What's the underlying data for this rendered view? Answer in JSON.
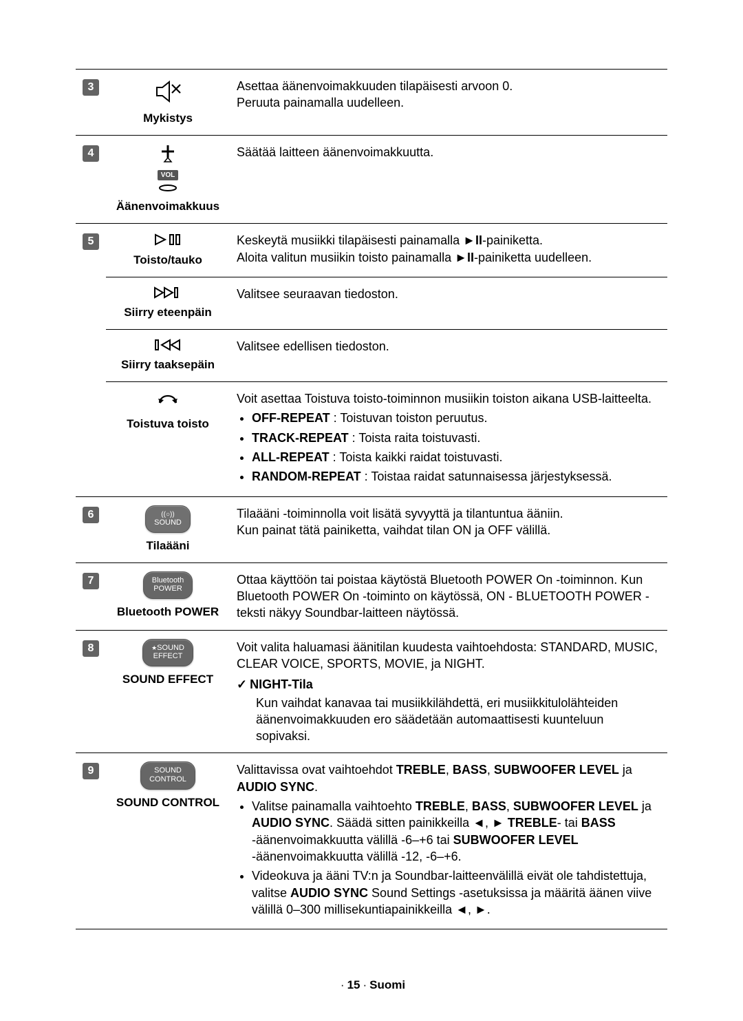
{
  "rows": {
    "r3": {
      "num": "3",
      "label": "Mykistys",
      "desc": "Asettaa äänenvoimakkuuden tilapäisesti arvoon 0.\nPeruuta painamalla uudelleen."
    },
    "r4": {
      "num": "4",
      "label": "Äänenvoimakkuus",
      "vol_text": "VOL",
      "desc": "Säätää laitteen äänenvoimakkuutta."
    },
    "r5": {
      "num": "5",
      "play": {
        "label": "Toisto/tauko",
        "line1_pre": "Keskeytä musiikki tilapäisesti painamalla ",
        "line1_post": "-painiketta.",
        "line2_pre": "Aloita valitun musiikin toisto painamalla ",
        "line2_post": "-painiketta uudelleen."
      },
      "fwd": {
        "label": "Siirry eteenpäin",
        "desc": "Valitsee seuraavan tiedoston."
      },
      "back": {
        "label": "Siirry taaksepäin",
        "desc": "Valitsee edellisen tiedoston."
      },
      "repeat": {
        "label": "Toistuva toisto",
        "intro": "Voit asettaa Toistuva toisto-toiminnon musiikin toiston aikana USB-laitteelta.",
        "items": [
          {
            "term": "OFF-REPEAT",
            "body": " : Toistuvan toiston peruutus."
          },
          {
            "term": "TRACK-REPEAT",
            "body": " : Toista raita toistuvasti."
          },
          {
            "term": "ALL-REPEAT",
            "body": " : Toista kaikki raidat toistuvasti."
          },
          {
            "term": "RANDOM-REPEAT",
            "body": " : Toistaa raidat satunnaisessa järjestyksessä."
          }
        ]
      }
    },
    "r6": {
      "num": "6",
      "label": "Tilaääni",
      "btn_top": "((○))",
      "btn_text": "SOUND",
      "desc": "Tilaääni -toiminnolla voit lisätä syvyyttä ja tilantuntua ääniin.\nKun painat tätä painiketta, vaihdat tilan ON ja OFF välillä."
    },
    "r7": {
      "num": "7",
      "label": "Bluetooth POWER",
      "btn_line1": "Bluetooth",
      "btn_line2": "POWER",
      "desc": "Ottaa käyttöön tai poistaa käytöstä Bluetooth POWER On -toiminnon. Kun Bluetooth POWER On -toiminto on käytössä, ON - BLUETOOTH POWER -teksti näkyy Soundbar-laitteen näytössä."
    },
    "r8": {
      "num": "8",
      "label": "SOUND EFFECT",
      "btn_line1": "SOUND",
      "btn_line2": "EFFECT",
      "desc": "Voit valita haluamasi äänitilan kuudesta vaihtoehdosta: STANDARD, MUSIC, CLEAR VOICE, SPORTS, MOVIE, ja NIGHT.",
      "check_title": "NIGHT-Tila",
      "check_body": "Kun vaihdat kanavaa tai musiikkilähdettä, eri musiikkitulolähteiden äänenvoimakkuuden ero säädetään automaattisesti kuunteluun sopivaksi."
    },
    "r9": {
      "num": "9",
      "label": "SOUND CONTROL",
      "btn_line1": "SOUND",
      "btn_line2": "CONTROL",
      "intro_pre": "Valittavissa ovat vaihtoehdot ",
      "intro_terms": [
        "TREBLE",
        "BASS",
        "SUBWOOFER LEVEL"
      ],
      "intro_and": " ja ",
      "intro_last": "AUDIO SYNC",
      "b1_pre": "Valitse painamalla vaihtoehto ",
      "b1_terms": [
        "TREBLE",
        "BASS",
        "SUBWOOFER LEVEL"
      ],
      "b1_and": " ja ",
      "b1_last": "AUDIO SYNC",
      "b1_post1": ". Säädä sitten painikkeilla ◄, ► ",
      "b1_t1": "TREBLE",
      "b1_or": "- tai ",
      "b1_t2": "BASS",
      "b1_post2": " -äänenvoimakkuutta välillä -6–+6 tai ",
      "b1_t3": "SUBWOOFER LEVEL",
      "b1_post3": " -äänenvoimakkuutta välillä -12, -6–+6.",
      "b2_pre": "Videokuva ja ääni TV:n ja Soundbar-laitteenvälillä eivät ole tahdistettuja, valitse ",
      "b2_term": "AUDIO SYNC",
      "b2_post": " Sound Settings -asetuksissa ja määritä äänen viive välillä 0–300 millisekuntiapainikkeilla ◄, ►."
    }
  },
  "footer": {
    "page": "15",
    "lang": "Suomi"
  },
  "colors": {
    "badge_bg": "#636363",
    "border": "#000000",
    "text": "#000000",
    "btn_bg": "#666666"
  }
}
